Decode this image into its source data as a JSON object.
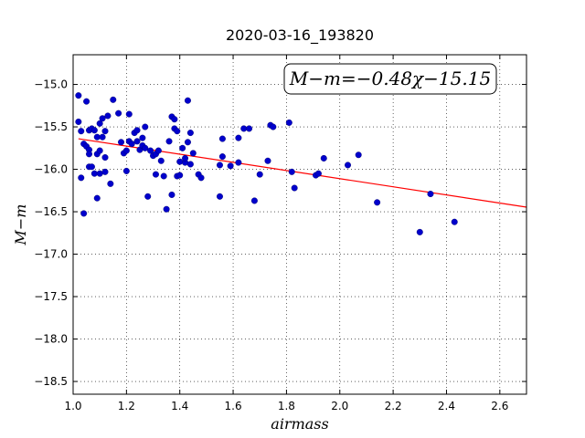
{
  "chart_data": {
    "type": "scatter",
    "title": "2020-03-16_193820",
    "xlabel": "airmass",
    "ylabel": "M−m",
    "xlim": [
      1.0,
      2.7
    ],
    "ylim": [
      -18.65,
      -14.65
    ],
    "ylim_order": "inverted",
    "grid": true,
    "x_ticks": [
      1.0,
      1.2,
      1.4,
      1.6,
      1.8,
      2.0,
      2.2,
      2.4,
      2.6
    ],
    "x_tick_labels": [
      "1.0",
      "1.2",
      "1.4",
      "1.6",
      "1.8",
      "2.0",
      "2.2",
      "2.4",
      "2.6"
    ],
    "y_ticks": [
      -15.0,
      -15.5,
      -16.0,
      -16.5,
      -17.0,
      -17.5,
      -18.0,
      -18.5
    ],
    "y_tick_labels": [
      "−15.0",
      "−15.5",
      "−16.0",
      "−16.5",
      "−17.0",
      "−17.5",
      "−18.0",
      "−18.5"
    ],
    "annotation": "M−m=−0.48χ−15.15",
    "annotation_position": "top-right",
    "series": [
      {
        "kind": "points",
        "color": "#0000cc",
        "x": [
          1.02,
          1.02,
          1.03,
          1.03,
          1.04,
          1.04,
          1.05,
          1.05,
          1.06,
          1.06,
          1.06,
          1.06,
          1.07,
          1.07,
          1.08,
          1.08,
          1.09,
          1.09,
          1.09,
          1.1,
          1.1,
          1.1,
          1.11,
          1.11,
          1.12,
          1.12,
          1.12,
          1.13,
          1.14,
          1.15,
          1.17,
          1.18,
          1.19,
          1.2,
          1.2,
          1.21,
          1.21,
          1.22,
          1.23,
          1.24,
          1.24,
          1.25,
          1.26,
          1.26,
          1.27,
          1.27,
          1.28,
          1.29,
          1.3,
          1.31,
          1.31,
          1.32,
          1.33,
          1.34,
          1.35,
          1.36,
          1.37,
          1.37,
          1.38,
          1.38,
          1.39,
          1.39,
          1.4,
          1.4,
          1.41,
          1.42,
          1.42,
          1.43,
          1.43,
          1.44,
          1.44,
          1.45,
          1.47,
          1.48,
          1.55,
          1.55,
          1.56,
          1.56,
          1.59,
          1.62,
          1.62,
          1.64,
          1.66,
          1.68,
          1.7,
          1.73,
          1.74,
          1.75,
          1.81,
          1.82,
          1.83,
          1.91,
          1.92,
          1.94,
          2.03,
          2.07,
          2.14,
          2.3,
          2.34,
          2.43
        ],
        "y": [
          -15.13,
          -15.44,
          -15.55,
          -16.1,
          -16.52,
          -15.7,
          -15.2,
          -15.73,
          -15.77,
          -15.82,
          -15.97,
          -15.54,
          -15.97,
          -15.52,
          -16.05,
          -15.54,
          -16.34,
          -15.62,
          -15.82,
          -15.46,
          -15.78,
          -16.05,
          -15.62,
          -15.4,
          -15.55,
          -16.03,
          -15.86,
          -15.37,
          -16.17,
          -15.18,
          -15.34,
          -15.68,
          -15.81,
          -15.78,
          -16.02,
          -15.35,
          -15.67,
          -15.7,
          -15.57,
          -15.54,
          -15.67,
          -15.77,
          -15.63,
          -15.72,
          -15.5,
          -15.75,
          -16.32,
          -15.78,
          -15.84,
          -15.82,
          -16.06,
          -15.78,
          -15.9,
          -16.08,
          -16.47,
          -15.67,
          -15.38,
          -16.3,
          -15.41,
          -15.52,
          -16.08,
          -15.55,
          -16.07,
          -15.91,
          -15.75,
          -15.92,
          -15.87,
          -15.19,
          -15.68,
          -15.57,
          -15.94,
          -15.81,
          -16.06,
          -16.1,
          -15.95,
          -16.32,
          -15.85,
          -15.64,
          -15.96,
          -15.63,
          -15.92,
          -15.52,
          -15.52,
          -16.37,
          -16.06,
          -15.9,
          -15.48,
          -15.5,
          -15.45,
          -16.03,
          -16.22,
          -16.07,
          -16.05,
          -15.87,
          -15.95,
          -15.83,
          -16.39,
          -16.74,
          -16.29,
          -16.62
        ]
      },
      {
        "kind": "line",
        "color": "#ff0000",
        "x": [
          1.02,
          2.7
        ],
        "y": [
          -15.6396,
          -16.446
        ]
      }
    ]
  }
}
